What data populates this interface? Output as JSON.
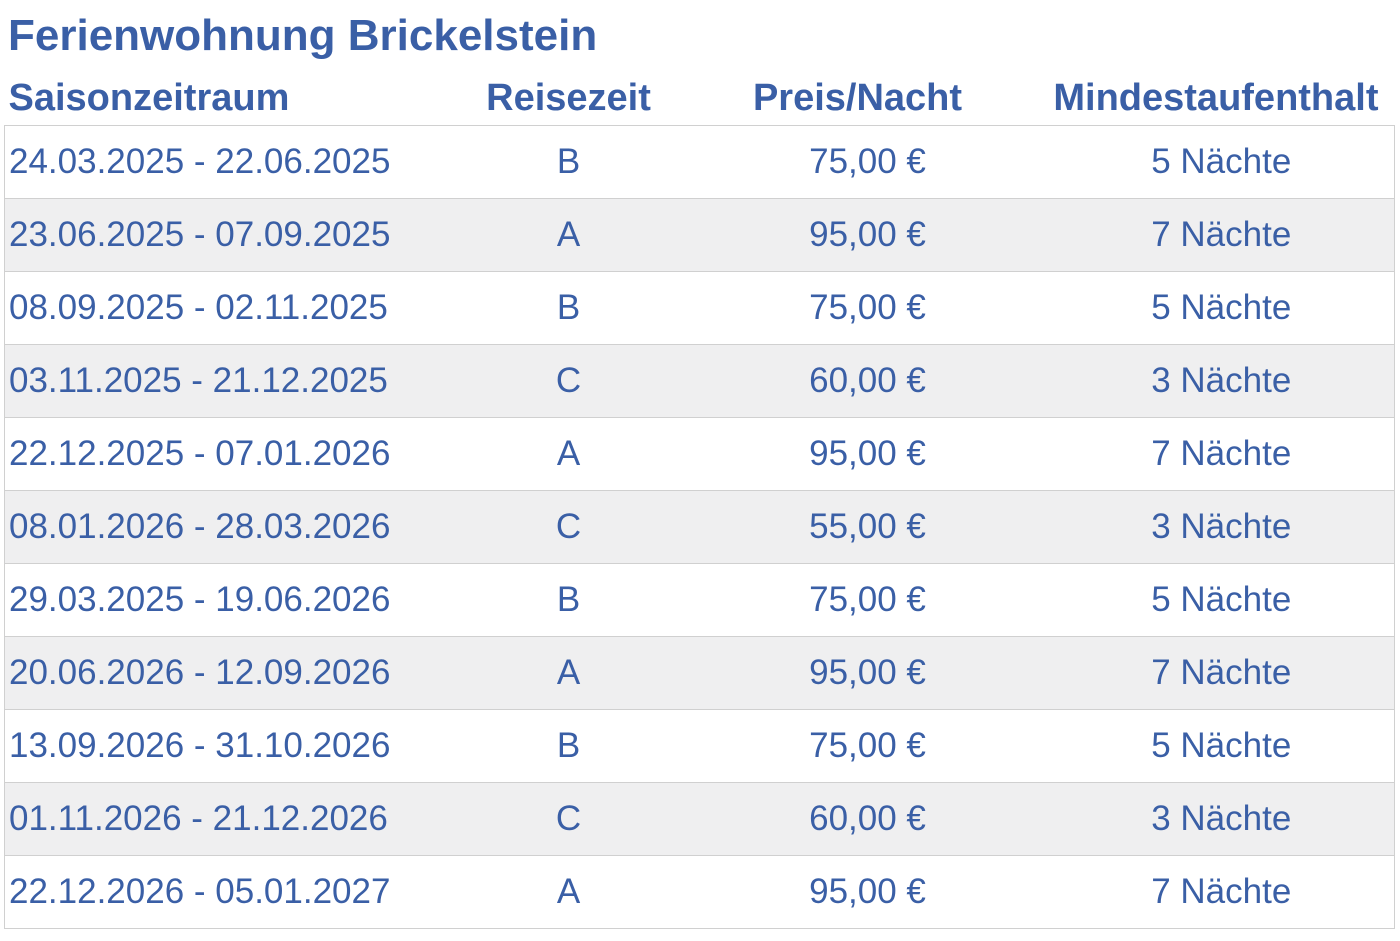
{
  "title": "Ferienwohnung Brickelstein",
  "columns": {
    "season": "Saisonzeitraum",
    "travel_period": "Reisezeit",
    "price": "Preis/Nacht",
    "min_stay": "Mindestaufenthalt"
  },
  "rows": [
    {
      "season": "24.03.2025 - 22.06.2025",
      "travel_period": "B",
      "price": "75,00 €",
      "min_stay": "5 Nächte"
    },
    {
      "season": "23.06.2025 - 07.09.2025",
      "travel_period": "A",
      "price": "95,00 €",
      "min_stay": "7 Nächte"
    },
    {
      "season": "08.09.2025 - 02.11.2025",
      "travel_period": "B",
      "price": "75,00 €",
      "min_stay": "5 Nächte"
    },
    {
      "season": "03.11.2025 - 21.12.2025",
      "travel_period": "C",
      "price": "60,00 €",
      "min_stay": "3 Nächte"
    },
    {
      "season": "22.12.2025 - 07.01.2026",
      "travel_period": "A",
      "price": "95,00 €",
      "min_stay": "7 Nächte"
    },
    {
      "season": "08.01.2026 - 28.03.2026",
      "travel_period": "C",
      "price": "55,00 €",
      "min_stay": "3 Nächte"
    },
    {
      "season": "29.03.2025 - 19.06.2026",
      "travel_period": "B",
      "price": "75,00 €",
      "min_stay": "5 Nächte"
    },
    {
      "season": "20.06.2026 - 12.09.2026",
      "travel_period": "A",
      "price": "95,00 €",
      "min_stay": "7 Nächte"
    },
    {
      "season": "13.09.2026 - 31.10.2026",
      "travel_period": "B",
      "price": "75,00 €",
      "min_stay": "5 Nächte"
    },
    {
      "season": "01.11.2026 - 21.12.2026",
      "travel_period": "C",
      "price": "60,00 €",
      "min_stay": "3 Nächte"
    },
    {
      "season": "22.12.2026 - 05.01.2027",
      "travel_period": "A",
      "price": "95,00 €",
      "min_stay": "7 Nächte"
    }
  ],
  "colors": {
    "text": "#3a5fa6",
    "row_alt": "#efeff0",
    "border": "#d0d0d0"
  }
}
